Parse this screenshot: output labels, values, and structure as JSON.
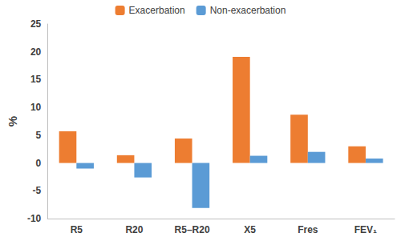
{
  "chart_data": {
    "type": "bar",
    "y_label": "%",
    "categories": [
      "R5",
      "R20",
      "R5–R20",
      "X5",
      "Fres",
      "FEV₁"
    ],
    "series": [
      {
        "name": "Exacerbation",
        "color": "#ED7D31",
        "values": [
          5.7,
          1.4,
          4.4,
          19.1,
          8.7,
          3.0
        ]
      },
      {
        "name": "Non-exacerbation",
        "color": "#5B9BD5",
        "values": [
          -1.0,
          -2.6,
          -8.1,
          1.3,
          2.0,
          0.8
        ]
      }
    ],
    "ylim": [
      -10,
      25
    ],
    "yticks": [
      -10,
      -5,
      0,
      5,
      10,
      15,
      20,
      25
    ],
    "grid": false,
    "legend": "top"
  }
}
